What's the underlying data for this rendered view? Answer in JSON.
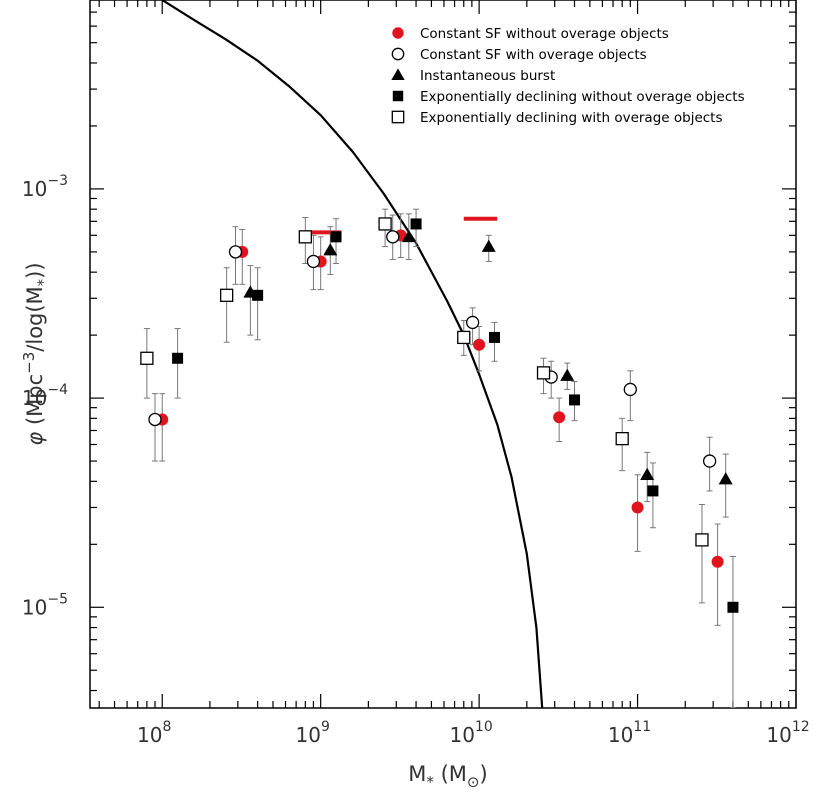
{
  "chart_data": {
    "type": "scatter",
    "xscale": "log",
    "yscale": "log",
    "xlim": [
      35000000.0,
      1000000000000.0
    ],
    "ylim": [
      3.3e-06,
      0.008
    ],
    "xlabel": {
      "base": "M",
      "sub": "*",
      "unit_open": " (M",
      "unit_sub": "⊙",
      "unit_close": ")"
    },
    "ylabel": {
      "phi": "φ",
      "text": " (Mpc",
      "sup": "−3",
      "text2": "/log(M",
      "sub": "*",
      "text3": "))"
    },
    "x_ticks": [
      {
        "base": "10",
        "exp": "8",
        "value": 100000000.0
      },
      {
        "base": "10",
        "exp": "9",
        "value": 1000000000.0
      },
      {
        "base": "10",
        "exp": "10",
        "value": 10000000000.0
      },
      {
        "base": "10",
        "exp": "11",
        "value": 100000000000.0
      },
      {
        "base": "10",
        "exp": "12",
        "value": 1000000000000.0
      }
    ],
    "y_ticks": [
      {
        "base": "10",
        "exp": "−5",
        "value": 1e-05
      },
      {
        "base": "10",
        "exp": "−4",
        "value": 0.0001
      },
      {
        "base": "10",
        "exp": "−3",
        "value": 0.001
      }
    ],
    "legend": {
      "position": "top-right",
      "entries": [
        {
          "label": "Constant SF without overage objects",
          "marker": "filled-circle",
          "color": "#e0141e"
        },
        {
          "label": "Constant SF with overage objects",
          "marker": "open-circle",
          "color": "#000000"
        },
        {
          "label": "Instantaneous burst",
          "marker": "filled-triangle",
          "color": "#000000"
        },
        {
          "label": "Exponentially declining without overage objects",
          "marker": "filled-square",
          "color": "#000000"
        },
        {
          "label": "Exponentially declining with overage objects",
          "marker": "open-square",
          "color": "#000000"
        }
      ]
    },
    "series": [
      {
        "name": "Constant SF without overage objects",
        "marker": "filled-circle",
        "color": "#e0141e",
        "points": [
          {
            "x": 100000000.0,
            "y": 7.9e-05,
            "lo": 5e-05,
            "hi": 0.000105
          },
          {
            "x": 320000000.0,
            "y": 0.0005,
            "lo": 0.00035,
            "hi": 0.00064
          },
          {
            "x": 1000000000.0,
            "y": 0.00045,
            "lo": 0.00033,
            "hi": 0.00059
          },
          {
            "x": 3200000000.0,
            "y": 0.0006,
            "lo": 0.00047,
            "hi": 0.00076
          },
          {
            "x": 10000000000.0,
            "y": 0.00018,
            "lo": 0.000135,
            "hi": 0.00022
          },
          {
            "x": 32000000000.0,
            "y": 8.1e-05,
            "lo": 6.2e-05,
            "hi": 0.0001
          },
          {
            "x": 100000000000.0,
            "y": 3e-05,
            "lo": 1.85e-05,
            "hi": 4.3e-05
          },
          {
            "x": 320000000000.0,
            "y": 1.65e-05,
            "lo": 8.2e-06,
            "hi": 2.5e-05
          }
        ]
      },
      {
        "name": "Constant SF with overage objects",
        "marker": "open-circle",
        "color": "#000000",
        "points": [
          {
            "x": 90000000.0,
            "y": 7.9e-05,
            "lo": 5e-05,
            "hi": 0.000105
          },
          {
            "x": 290000000.0,
            "y": 0.0005,
            "lo": 0.00035,
            "hi": 0.00066
          },
          {
            "x": 900000000.0,
            "y": 0.00045,
            "lo": 0.00033,
            "hi": 0.0006
          },
          {
            "x": 2850000000.0,
            "y": 0.00059,
            "lo": 0.00046,
            "hi": 0.00075
          },
          {
            "x": 9100000000.0,
            "y": 0.00023,
            "lo": 0.00018,
            "hi": 0.00027
          },
          {
            "x": 28500000000.0,
            "y": 0.000126,
            "lo": 0.0001,
            "hi": 0.00015
          },
          {
            "x": 90000000000.0,
            "y": 0.00011,
            "lo": 7.8e-05,
            "hi": 0.000135
          },
          {
            "x": 285000000000.0,
            "y": 5e-05,
            "lo": 3.6e-05,
            "hi": 6.5e-05
          }
        ]
      },
      {
        "name": "Instantaneous burst",
        "marker": "filled-triangle",
        "color": "#000000",
        "points": [
          {
            "x": 360000000.0,
            "y": 0.00032,
            "lo": 0.0002,
            "hi": 0.00043
          },
          {
            "x": 1150000000.0,
            "y": 0.00051,
            "lo": 0.00039,
            "hi": 0.00066
          },
          {
            "x": 3600000000.0,
            "y": 0.00059,
            "lo": 0.00046,
            "hi": 0.00076
          },
          {
            "x": 11500000000.0,
            "y": 0.00053,
            "lo": 0.00045,
            "hi": 0.0006
          },
          {
            "x": 36000000000.0,
            "y": 0.000128,
            "lo": 0.00011,
            "hi": 0.000147
          },
          {
            "x": 115000000000.0,
            "y": 4.3e-05,
            "lo": 3.2e-05,
            "hi": 5.5e-05
          },
          {
            "x": 360000000000.0,
            "y": 4.1e-05,
            "lo": 2.7e-05,
            "hi": 5.4e-05
          }
        ]
      },
      {
        "name": "Exponentially declining without overage objects",
        "marker": "filled-square",
        "color": "#000000",
        "points": [
          {
            "x": 125000000.0,
            "y": 0.000155,
            "lo": 0.0001,
            "hi": 0.000215
          },
          {
            "x": 400000000.0,
            "y": 0.00031,
            "lo": 0.00019,
            "hi": 0.00042
          },
          {
            "x": 1250000000.0,
            "y": 0.00059,
            "lo": 0.00044,
            "hi": 0.00072
          },
          {
            "x": 4000000000.0,
            "y": 0.00068,
            "lo": 0.00053,
            "hi": 0.0008
          },
          {
            "x": 12500000000.0,
            "y": 0.000195,
            "lo": 0.00015,
            "hi": 0.00023
          },
          {
            "x": 40000000000.0,
            "y": 9.8e-05,
            "lo": 7.8e-05,
            "hi": 0.00012
          },
          {
            "x": 125000000000.0,
            "y": 3.6e-05,
            "lo": 2.4e-05,
            "hi": 4.9e-05
          },
          {
            "x": 400000000000.0,
            "y": 1e-05,
            "lo": 3.3e-06,
            "hi": 1.75e-05
          }
        ]
      },
      {
        "name": "Exponentially declining with overage objects",
        "marker": "open-square",
        "color": "#000000",
        "points": [
          {
            "x": 80000000.0,
            "y": 0.000155,
            "lo": 0.0001,
            "hi": 0.000215
          },
          {
            "x": 255000000.0,
            "y": 0.00031,
            "lo": 0.000185,
            "hi": 0.00042
          },
          {
            "x": 800000000.0,
            "y": 0.00059,
            "lo": 0.00044,
            "hi": 0.00073
          },
          {
            "x": 2550000000.0,
            "y": 0.00068,
            "lo": 0.00053,
            "hi": 0.0008
          },
          {
            "x": 8000000000.0,
            "y": 0.000195,
            "lo": 0.00016,
            "hi": 0.000235
          },
          {
            "x": 25500000000.0,
            "y": 0.000132,
            "lo": 0.000105,
            "hi": 0.000155
          },
          {
            "x": 80000000000.0,
            "y": 6.4e-05,
            "lo": 4.5e-05,
            "hi": 8e-05
          },
          {
            "x": 255000000000.0,
            "y": 2.1e-05,
            "lo": 1.05e-05,
            "hi": 3.1e-05
          }
        ]
      }
    ],
    "red_bars": [
      {
        "x_from": 800000000.0,
        "x_to": 1350000000.0,
        "y": 0.00062,
        "color": "#e0141e"
      },
      {
        "x_from": 8000000000.0,
        "x_to": 13000000000.0,
        "y": 0.00072,
        "color": "#e0141e"
      }
    ],
    "curve": {
      "name": "model",
      "color": "#000000",
      "points": [
        [
          100000000.0,
          0.008
        ],
        [
          160000000.0,
          0.0064
        ],
        [
          250000000.0,
          0.0052
        ],
        [
          400000000.0,
          0.0041
        ],
        [
          630000000.0,
          0.0031
        ],
        [
          1000000000.0,
          0.00225
        ],
        [
          1600000000.0,
          0.0015
        ],
        [
          2500000000.0,
          0.00095
        ],
        [
          4000000000.0,
          0.00055
        ],
        [
          6300000000.0,
          0.00029
        ],
        [
          8000000000.0,
          0.0002
        ],
        [
          10000000000.0,
          0.00013
        ],
        [
          13000000000.0,
          7.5e-05
        ],
        [
          16000000000.0,
          4.2e-05
        ],
        [
          20000000000.0,
          1.8e-05
        ],
        [
          23000000000.0,
          8e-06
        ],
        [
          25000000000.0,
          3.3e-06
        ]
      ]
    }
  }
}
